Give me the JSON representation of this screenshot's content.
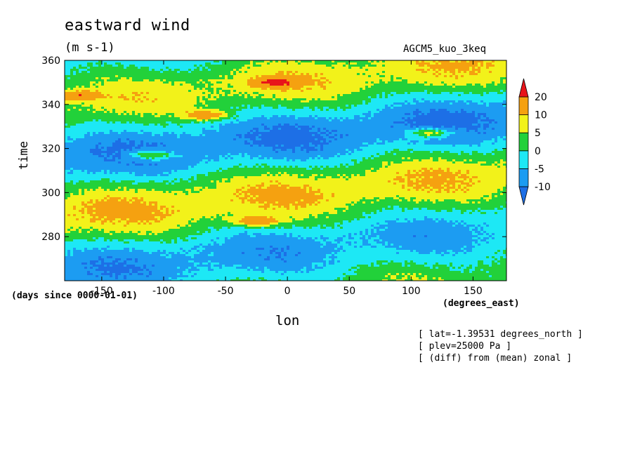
{
  "chart_data": {
    "type": "heatmap",
    "title": "eastward wind",
    "units": "(m s-1)",
    "run_name": "AGCM5_kuo_3keq",
    "xlabel": "lon",
    "ylabel": "time",
    "x_unit_note": "(degrees_east)",
    "y_unit_note": "(days since 0000-01-01)",
    "xlim": [
      -180,
      177
    ],
    "ylim": [
      260,
      360
    ],
    "x_ticks": [
      -150,
      -100,
      -50,
      0,
      50,
      100,
      150
    ],
    "y_ticks": [
      280,
      300,
      320,
      340,
      360
    ],
    "colorbar": {
      "levels": [
        -10,
        -5,
        0,
        5,
        10,
        20
      ],
      "colors": [
        "#1d6fe6",
        "#1c9cf2",
        "#1de8f5",
        "#22d13a",
        "#f2f21a",
        "#f5a110",
        "#e8141a"
      ],
      "extend": "both"
    },
    "wind_bands": [
      {
        "sign": "positive",
        "lon_start": -180,
        "lon_end": 177,
        "time_start": 262,
        "time_end": 288
      },
      {
        "sign": "negative",
        "lon_start": -180,
        "lon_end": 177,
        "time_start": 270,
        "time_end": 296
      },
      {
        "sign": "positive",
        "lon_start": -180,
        "lon_end": 177,
        "time_start": 300,
        "time_end": 322
      },
      {
        "sign": "negative",
        "lon_start": -180,
        "lon_end": 177,
        "time_start": 310,
        "time_end": 334
      },
      {
        "sign": "positive",
        "lon_start": -180,
        "lon_end": 177,
        "time_start": 326,
        "time_end": 350
      },
      {
        "sign": "negative",
        "lon_start": -180,
        "lon_end": 177,
        "time_start": 338,
        "time_end": 358
      }
    ],
    "maxima": [
      {
        "lon": -170,
        "time": 344
      },
      {
        "lon": -110,
        "time": 317
      },
      {
        "lon": -65,
        "time": 335
      },
      {
        "lon": -25,
        "time": 287
      },
      {
        "lon": -10,
        "time": 350
      },
      {
        "lon": 115,
        "time": 327
      }
    ],
    "notes": [
      "[ lat=-1.39531 degrees_north ]",
      "[ plev=25000 Pa ]",
      "[ (diff) from (mean) zonal ]"
    ]
  }
}
